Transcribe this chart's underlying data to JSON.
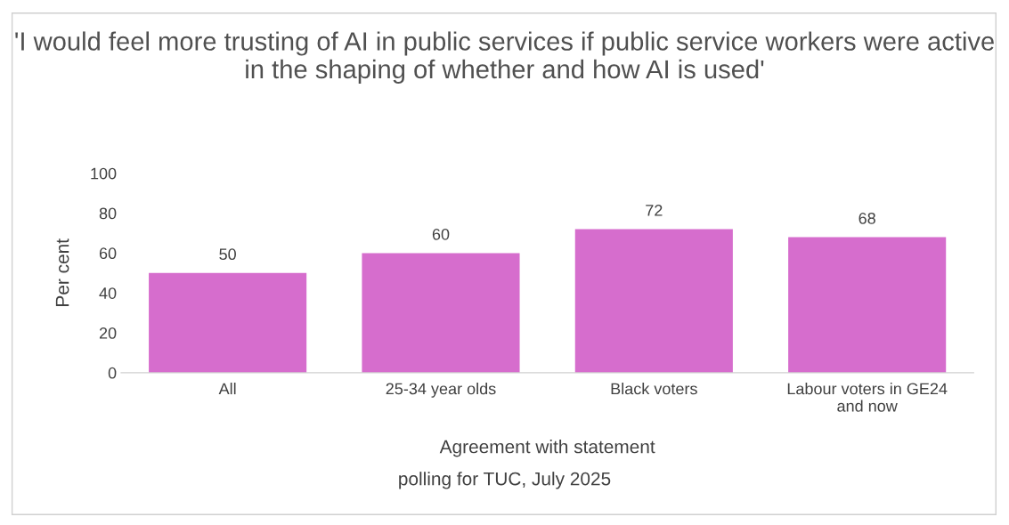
{
  "chart_data": {
    "type": "bar",
    "title": "'I would feel more trusting of AI in public services if public service workers were active in the shaping of whether and how AI is used'",
    "categories": [
      "All",
      "25-34 year olds",
      "Black voters",
      "Labour voters in GE24\nand now"
    ],
    "values": [
      50,
      60,
      72,
      68
    ],
    "color": "#d66dcd",
    "ylim": [
      0,
      100
    ],
    "yticks": [
      0,
      20,
      40,
      60,
      80,
      100
    ],
    "xlabel": "Agreement with statement",
    "ylabel": "Per cent",
    "annotations": [
      "polling for TUC, July 2025"
    ],
    "data_labels": true,
    "grid": false
  }
}
